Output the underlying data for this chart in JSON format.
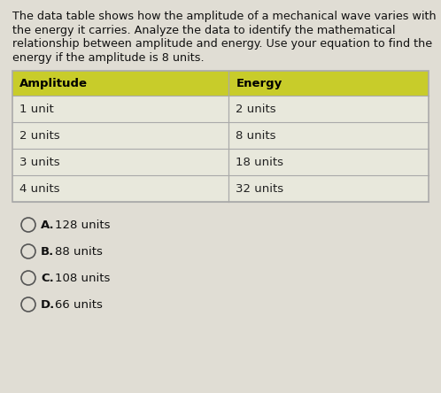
{
  "question_lines": [
    "The data table shows how the amplitude of a mechanical wave varies with",
    "the energy it carries. Analyze the data to identify the mathematical",
    "relationship between amplitude and energy. Use your equation to find the",
    "energy if the amplitude is 8 units."
  ],
  "table_header": [
    "Amplitude",
    "Energy"
  ],
  "table_rows": [
    [
      "1 unit",
      "2 units"
    ],
    [
      "2 units",
      "8 units"
    ],
    [
      "3 units",
      "18 units"
    ],
    [
      "4 units",
      "32 units"
    ]
  ],
  "header_bg_color": "#c8cc2a",
  "header_text_color": "#000000",
  "row_bg_color": "#e8e8dc",
  "table_border_color": "#aaaaaa",
  "choices": [
    {
      "label": "A.",
      "text": "128 units"
    },
    {
      "label": "B.",
      "text": "88 units"
    },
    {
      "label": "C.",
      "text": "108 units"
    },
    {
      "label": "D.",
      "text": "66 units"
    }
  ],
  "bg_color": "#e0ddd4",
  "question_fontsize": 9.2,
  "table_fontsize": 9.5,
  "choice_fontsize": 9.5,
  "fig_width": 4.98,
  "fig_height": 4.44,
  "dpi": 100
}
